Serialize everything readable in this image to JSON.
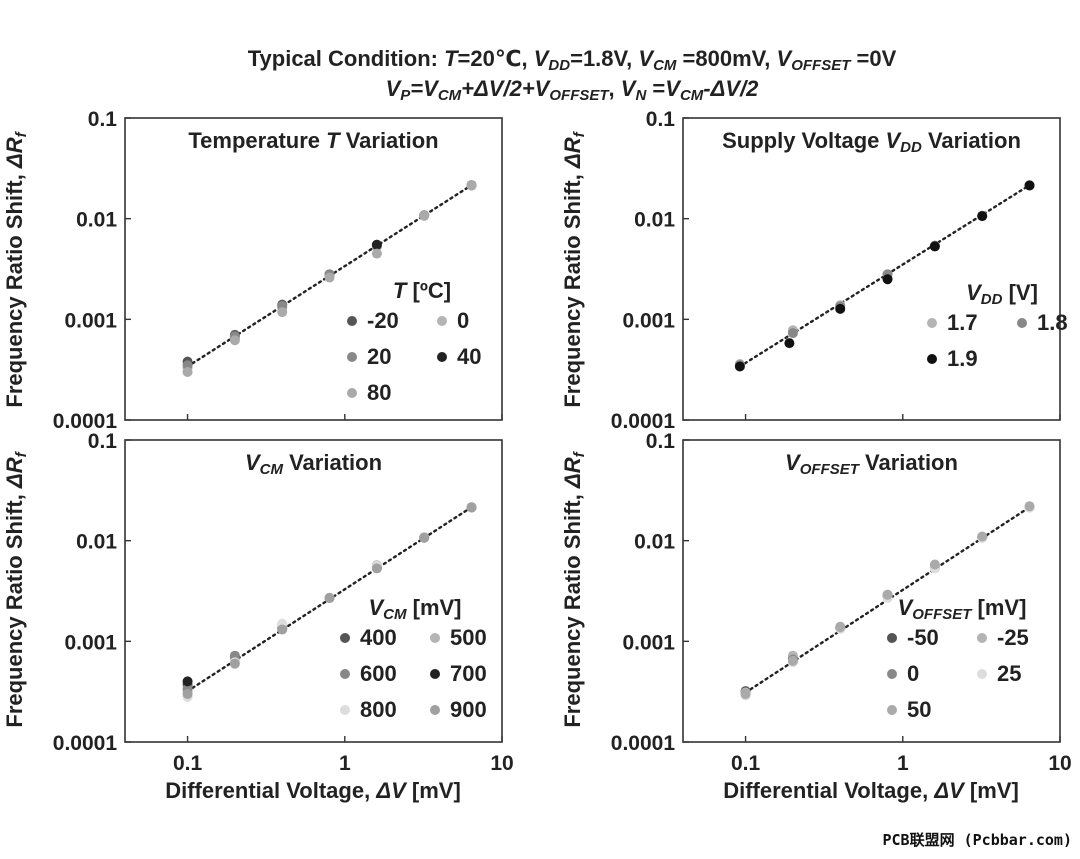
{
  "figure": {
    "title_line1": [
      {
        "t": "Typical Condition: "
      },
      {
        "t": "T",
        "i": true
      },
      {
        "t": "=20℃, "
      },
      {
        "t": "V",
        "i": true
      },
      {
        "t": "DD",
        "i": true,
        "sub": true
      },
      {
        "t": "=1.8V, "
      },
      {
        "t": "V",
        "i": true
      },
      {
        "t": "CM",
        "i": true,
        "sub": true
      },
      {
        "t": " =800mV, "
      },
      {
        "t": "V",
        "i": true
      },
      {
        "t": "OFFSET",
        "i": true,
        "sub": true
      },
      {
        "t": " =0V"
      }
    ],
    "title_line2": [
      {
        "t": "V",
        "i": true
      },
      {
        "t": "P",
        "i": true,
        "sub": true
      },
      {
        "t": "=",
        "i": true
      },
      {
        "t": "V",
        "i": true
      },
      {
        "t": "CM",
        "i": true,
        "sub": true
      },
      {
        "t": "+",
        "i": true
      },
      {
        "t": "ΔV",
        "i": true
      },
      {
        "t": "/2+",
        "i": true
      },
      {
        "t": "V",
        "i": true
      },
      {
        "t": "OFFSET",
        "i": true,
        "sub": true
      },
      {
        "t": ", "
      },
      {
        "t": "V",
        "i": true
      },
      {
        "t": "N",
        "i": true,
        "sub": true
      },
      {
        "t": " ="
      },
      {
        "t": "V",
        "i": true
      },
      {
        "t": "CM",
        "i": true,
        "sub": true
      },
      {
        "t": "-",
        "i": true
      },
      {
        "t": "ΔV",
        "i": true
      },
      {
        "t": "/2",
        "i": true
      }
    ],
    "ylabel": [
      {
        "t": "Frequency Ratio Shift, "
      },
      {
        "t": "ΔR",
        "i": true
      },
      {
        "t": "f",
        "i": true,
        "sub": true
      }
    ],
    "xlabel": [
      {
        "t": "Differential Voltage, "
      },
      {
        "t": "ΔV",
        "i": true
      },
      {
        "t": " [mV]"
      }
    ],
    "watermark": "PCB联盟网 (Pcbbar.com)"
  },
  "chart_data": [
    {
      "type": "scatter",
      "x_scale": "log",
      "y_scale": "log",
      "xlim": [
        0.04,
        10
      ],
      "ylim": [
        0.0001,
        0.1
      ],
      "x_ticks": [
        {
          "v": 0.1,
          "label": "0.1"
        },
        {
          "v": 1,
          "label": "1"
        },
        {
          "v": 10,
          "label": "10"
        }
      ],
      "y_ticks": [
        {
          "v": 0.0001,
          "label": "0.0001"
        },
        {
          "v": 0.001,
          "label": "0.001"
        },
        {
          "v": 0.01,
          "label": "0.01"
        },
        {
          "v": 0.1,
          "label": "0.1"
        }
      ],
      "title": [
        {
          "t": "Temperature "
        },
        {
          "t": "T",
          "i": true
        },
        {
          "t": " Variation"
        }
      ],
      "legend_title": [
        {
          "t": "T",
          "i": true
        },
        {
          "t": " [ºC]"
        }
      ],
      "fit_line": {
        "x": [
          0.1,
          6.4
        ],
        "y": [
          0.00034,
          0.0215
        ]
      },
      "series": [
        {
          "name": "-20",
          "color": "#555555",
          "x": [
            0.1,
            0.2,
            0.4,
            0.8,
            1.6,
            3.2,
            6.4
          ],
          "y": [
            0.00038,
            0.0007,
            0.0014,
            0.0028,
            0.0055,
            0.0108,
            0.0215
          ]
        },
        {
          "name": "0",
          "color": "#b4b4b4",
          "x": [
            0.1,
            0.2,
            0.4,
            0.8,
            1.6,
            3.2,
            6.4
          ],
          "y": [
            0.00033,
            0.00064,
            0.0013,
            0.0027,
            0.0053,
            0.0107,
            0.0214
          ]
        },
        {
          "name": "20",
          "color": "#888888",
          "x": [
            0.1,
            0.2,
            0.4,
            0.8,
            1.6,
            3.2,
            6.4
          ],
          "y": [
            0.00035,
            0.00068,
            0.00136,
            0.0028,
            0.0054,
            0.0108,
            0.0215
          ]
        },
        {
          "name": "40",
          "color": "#222222",
          "x": [
            1.6
          ],
          "y": [
            0.0055
          ]
        },
        {
          "name": "80",
          "color": "#aaaaaa",
          "x": [
            0.1,
            0.2,
            0.4,
            0.8,
            1.6,
            3.2,
            6.4
          ],
          "y": [
            0.0003,
            0.00062,
            0.00118,
            0.0026,
            0.0045,
            0.0107,
            0.0213
          ]
        }
      ]
    },
    {
      "type": "scatter",
      "x_scale": "log",
      "y_scale": "log",
      "xlim": [
        0.04,
        10
      ],
      "ylim": [
        0.0001,
        0.1
      ],
      "x_ticks": [
        {
          "v": 0.1,
          "label": "0.1"
        },
        {
          "v": 1,
          "label": "1"
        },
        {
          "v": 10,
          "label": "10"
        }
      ],
      "y_ticks": [
        {
          "v": 0.0001,
          "label": "0.0001"
        },
        {
          "v": 0.001,
          "label": "0.001"
        },
        {
          "v": 0.01,
          "label": "0.01"
        },
        {
          "v": 0.1,
          "label": "0.1"
        }
      ],
      "title": [
        {
          "t": "Supply Voltage "
        },
        {
          "t": "V",
          "i": true
        },
        {
          "t": "DD",
          "i": true,
          "sub": true
        },
        {
          "t": " Variation"
        }
      ],
      "legend_title": [
        {
          "t": "V",
          "i": true
        },
        {
          "t": "DD",
          "i": true,
          "sub": true
        },
        {
          "t": " [V]"
        }
      ],
      "fit_line": {
        "x": [
          0.092,
          6.4
        ],
        "y": [
          0.00034,
          0.0215
        ]
      },
      "series": [
        {
          "name": "1.7",
          "color": "#b4b4b4",
          "x": [
            0.092,
            0.2,
            0.4,
            0.8,
            1.6,
            3.2,
            6.4
          ],
          "y": [
            0.00036,
            0.00078,
            0.00138,
            0.0028,
            0.0054,
            0.0107,
            0.0214
          ]
        },
        {
          "name": "1.8",
          "color": "#888888",
          "x": [
            0.092,
            0.2,
            0.4,
            0.8,
            1.6,
            3.2,
            6.4
          ],
          "y": [
            0.00035,
            0.00073,
            0.00134,
            0.0028,
            0.0054,
            0.0107,
            0.0214
          ]
        },
        {
          "name": "1.9",
          "color": "#111111",
          "x": [
            0.092,
            0.19,
            0.4,
            0.8,
            1.6,
            3.2,
            6.4
          ],
          "y": [
            0.00034,
            0.00058,
            0.00127,
            0.0025,
            0.0053,
            0.0106,
            0.0214
          ]
        }
      ]
    },
    {
      "type": "scatter",
      "x_scale": "log",
      "y_scale": "log",
      "xlim": [
        0.04,
        10
      ],
      "ylim": [
        0.0001,
        0.1
      ],
      "x_ticks": [
        {
          "v": 0.1,
          "label": "0.1"
        },
        {
          "v": 1,
          "label": "1"
        },
        {
          "v": 10,
          "label": "10"
        }
      ],
      "y_ticks": [
        {
          "v": 0.0001,
          "label": "0.0001"
        },
        {
          "v": 0.001,
          "label": "0.001"
        },
        {
          "v": 0.01,
          "label": "0.01"
        },
        {
          "v": 0.1,
          "label": "0.1"
        }
      ],
      "title": [
        {
          "t": "V",
          "i": true
        },
        {
          "t": "CM",
          "i": true,
          "sub": true
        },
        {
          "t": " Variation"
        }
      ],
      "legend_title": [
        {
          "t": "V",
          "i": true
        },
        {
          "t": "CM",
          "i": true,
          "sub": true
        },
        {
          "t": " [mV]"
        }
      ],
      "fit_line": {
        "x": [
          0.1,
          6.4
        ],
        "y": [
          0.00032,
          0.0215
        ]
      },
      "series": [
        {
          "name": "400",
          "color": "#555555",
          "x": [
            0.1,
            0.2,
            0.4,
            0.8,
            1.6,
            3.2,
            6.4
          ],
          "y": [
            0.00037,
            0.0007,
            0.00135,
            0.0027,
            0.0055,
            0.0108,
            0.0215
          ]
        },
        {
          "name": "500",
          "color": "#b4b4b4",
          "x": [
            0.1,
            0.2,
            0.4,
            0.8,
            1.6,
            3.2,
            6.4
          ],
          "y": [
            0.00032,
            0.00066,
            0.00145,
            0.0027,
            0.0057,
            0.0108,
            0.0216
          ]
        },
        {
          "name": "600",
          "color": "#888888",
          "x": [
            0.1,
            0.2,
            0.4,
            0.8,
            1.6,
            3.2,
            6.4
          ],
          "y": [
            0.00034,
            0.00072,
            0.00133,
            0.0027,
            0.0054,
            0.0107,
            0.0214
          ]
        },
        {
          "name": "700",
          "color": "#222222",
          "x": [
            0.1
          ],
          "y": [
            0.0004
          ]
        },
        {
          "name": "800",
          "color": "#dddddd",
          "x": [
            0.1,
            0.2,
            0.4,
            0.8,
            1.6,
            3.2,
            6.4
          ],
          "y": [
            0.00028,
            0.00062,
            0.0015,
            0.0027,
            0.0056,
            0.0108,
            0.0216
          ]
        },
        {
          "name": "900",
          "color": "#a0a0a0",
          "x": [
            0.1,
            0.2,
            0.4,
            0.8,
            1.6,
            3.2,
            6.4
          ],
          "y": [
            0.0003,
            0.0006,
            0.00131,
            0.0027,
            0.0053,
            0.0107,
            0.0214
          ]
        }
      ]
    },
    {
      "type": "scatter",
      "x_scale": "log",
      "y_scale": "log",
      "xlim": [
        0.04,
        10
      ],
      "ylim": [
        0.0001,
        0.1
      ],
      "x_ticks": [
        {
          "v": 0.1,
          "label": "0.1"
        },
        {
          "v": 1,
          "label": "1"
        },
        {
          "v": 10,
          "label": "10"
        }
      ],
      "y_ticks": [
        {
          "v": 0.0001,
          "label": "0.0001"
        },
        {
          "v": 0.001,
          "label": "0.001"
        },
        {
          "v": 0.01,
          "label": "0.01"
        },
        {
          "v": 0.1,
          "label": "0.1"
        }
      ],
      "title": [
        {
          "t": "V",
          "i": true
        },
        {
          "t": "OFFSET",
          "i": true,
          "sub": true
        },
        {
          "t": " Variation"
        }
      ],
      "legend_title": [
        {
          "t": "V",
          "i": true
        },
        {
          "t": "OFFSET",
          "i": true,
          "sub": true
        },
        {
          "t": " [mV]"
        }
      ],
      "fit_line": {
        "x": [
          0.1,
          6.4
        ],
        "y": [
          0.00031,
          0.0215
        ]
      },
      "series": [
        {
          "name": "-50",
          "color": "#555555",
          "x": [
            0.1,
            0.2,
            0.4,
            0.8,
            1.6,
            3.2,
            6.4
          ],
          "y": [
            0.00032,
            0.00068,
            0.00136,
            0.0028,
            0.0054,
            0.0108,
            0.0215
          ]
        },
        {
          "name": "-25",
          "color": "#b4b4b4",
          "x": [
            0.1,
            0.2,
            0.4,
            0.8,
            1.6,
            3.2,
            6.4
          ],
          "y": [
            0.00031,
            0.00072,
            0.0014,
            0.0029,
            0.0056,
            0.0109,
            0.0216
          ]
        },
        {
          "name": "0",
          "color": "#888888",
          "x": [
            0.1,
            0.2,
            0.4,
            0.8,
            1.6,
            3.2,
            6.4
          ],
          "y": [
            0.0003,
            0.00066,
            0.00134,
            0.0028,
            0.0054,
            0.0108,
            0.0215
          ]
        },
        {
          "name": "25",
          "color": "#dddddd",
          "x": [
            0.1,
            0.2,
            0.4,
            0.8,
            1.6,
            3.2,
            6.4
          ],
          "y": [
            0.00029,
            0.00062,
            0.00133,
            0.0027,
            0.0053,
            0.0106,
            0.0213
          ]
        },
        {
          "name": "50",
          "color": "#aaaaaa",
          "x": [
            0.1,
            0.2,
            0.4,
            0.8,
            1.6,
            3.2,
            6.4
          ],
          "y": [
            0.0003,
            0.00064,
            0.00138,
            0.0029,
            0.0058,
            0.011,
            0.022
          ]
        }
      ]
    }
  ]
}
